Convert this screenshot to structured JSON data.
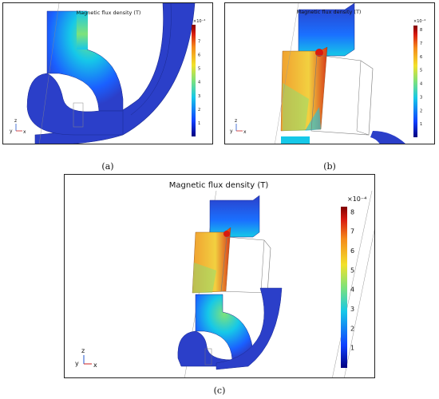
{
  "title": "Magnetic flux density (T)",
  "exponent": "×10⁻⁴",
  "colorbar_ticks": [
    "1",
    "2",
    "3",
    "4",
    "5",
    "6",
    "7",
    "8"
  ],
  "axes": {
    "z": "z",
    "y": "y",
    "x": "x"
  },
  "panels": [
    {
      "caption": "(a)",
      "colorbar_ticks": [
        "1",
        "2",
        "3",
        "4",
        "5",
        "6",
        "7"
      ]
    },
    {
      "caption": "(b)",
      "colorbar_ticks": [
        "1",
        "2",
        "3",
        "4",
        "5",
        "6",
        "7",
        "8"
      ]
    },
    {
      "caption": "(c)",
      "colorbar_ticks": [
        "1",
        "2",
        "3",
        "4",
        "5",
        "6",
        "7",
        "8"
      ]
    }
  ],
  "colormap": [
    "#00007f",
    "#1040ff",
    "#16c8e8",
    "#7ee27a",
    "#f2e12a",
    "#f58a1a",
    "#d81a10",
    "#7f0000"
  ],
  "geometry_color": "#2b3fc9"
}
